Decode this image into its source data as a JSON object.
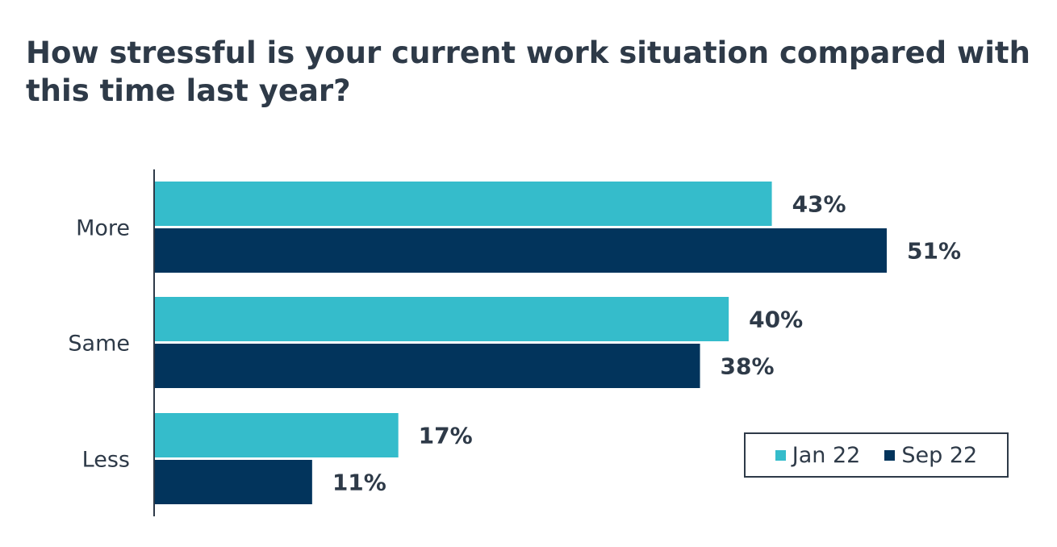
{
  "chart_data": {
    "type": "bar",
    "orientation": "horizontal",
    "title": "How stressful is your current work situation compared with this time last year?",
    "categories": [
      "More",
      "Same",
      "Less"
    ],
    "series": [
      {
        "name": "Jan 22",
        "values": [
          43,
          40,
          17
        ],
        "labels": [
          "43%",
          "40%",
          "17%"
        ],
        "color": "#35bccb"
      },
      {
        "name": "Sep 22",
        "values": [
          51,
          38,
          11
        ],
        "labels": [
          "51%",
          "38%",
          "11%"
        ],
        "color": "#02345c"
      }
    ],
    "xlim": [
      0,
      60
    ],
    "grid": false,
    "legend_position": "bottom-right"
  }
}
